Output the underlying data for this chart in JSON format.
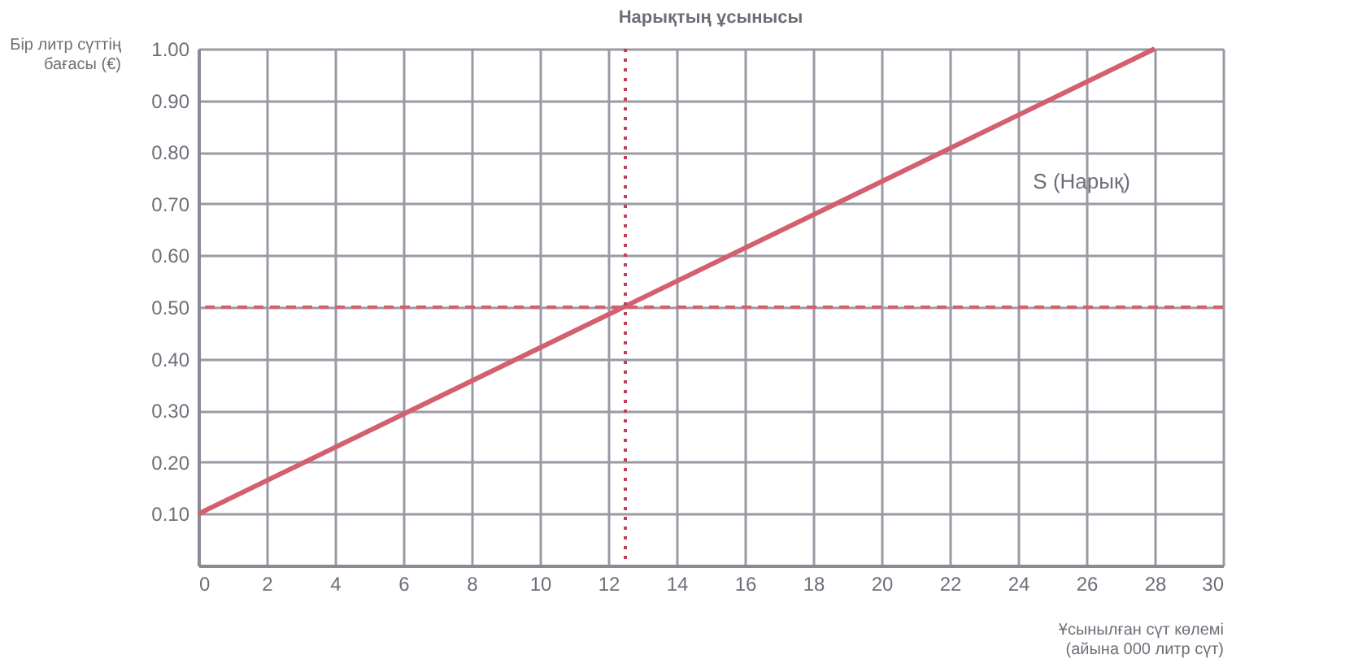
{
  "chart_data": {
    "type": "line",
    "title": "Нарықтың ұсынысы",
    "xlabel": "Ұсынылған сүт көлемі (айына 000 литр сүт)",
    "ylabel": "Бір литр сүттің бағасы (€)",
    "x": [
      0,
      28
    ],
    "series": [
      {
        "name": "S (Нарық)",
        "color": "#d2606f",
        "values": [
          0.1,
          1.0
        ]
      }
    ],
    "xlim": [
      0,
      30
    ],
    "xticks": [
      0,
      2,
      4,
      6,
      8,
      10,
      12,
      14,
      16,
      18,
      20,
      22,
      24,
      26,
      28,
      30
    ],
    "ylim": [
      0,
      1
    ],
    "yticks": [
      {
        "value": 0.1,
        "label": "0.10"
      },
      {
        "value": 0.2,
        "label": "0.20"
      },
      {
        "value": 0.3,
        "label": "0.30"
      },
      {
        "value": 0.4,
        "label": "0.40"
      },
      {
        "value": 0.5,
        "label": "0.50"
      },
      {
        "value": 0.6,
        "label": "0.60"
      },
      {
        "value": 0.7,
        "label": "0.70"
      },
      {
        "value": 0.8,
        "label": "0.80"
      },
      {
        "value": 0.9,
        "label": "0.90"
      },
      {
        "value": 1.0,
        "label": "1.00"
      }
    ],
    "ref_lines": [
      {
        "axis": "y",
        "value": 0.5,
        "color": "#d2606f",
        "line_style": "dashed"
      },
      {
        "axis": "x",
        "value": 12.5,
        "color": "#c0405a",
        "line_style": "dotted"
      }
    ],
    "grid": true,
    "marker": "none",
    "line_style": "solid"
  }
}
